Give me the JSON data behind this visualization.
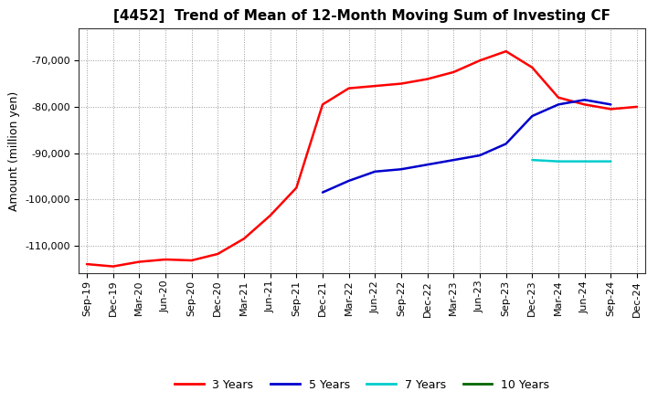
{
  "title": "[4452]  Trend of Mean of 12-Month Moving Sum of Investing CF",
  "ylabel": "Amount (million yen)",
  "background_color": "#ffffff",
  "plot_bg_color": "#ffffff",
  "grid_color": "#999999",
  "ylim": [
    -116000,
    -63000
  ],
  "yticks": [
    -110000,
    -100000,
    -90000,
    -80000,
    -70000
  ],
  "x_labels": [
    "Sep-19",
    "Dec-19",
    "Mar-20",
    "Jun-20",
    "Sep-20",
    "Dec-20",
    "Mar-21",
    "Jun-21",
    "Sep-21",
    "Dec-21",
    "Mar-22",
    "Jun-22",
    "Sep-22",
    "Dec-22",
    "Mar-23",
    "Jun-23",
    "Sep-23",
    "Dec-23",
    "Mar-24",
    "Jun-24",
    "Sep-24",
    "Dec-24"
  ],
  "series_3yr": {
    "label": "3 Years",
    "color": "#ff0000",
    "data_x": [
      0,
      1,
      2,
      3,
      4,
      5,
      6,
      7,
      8,
      9,
      10,
      11,
      12,
      13,
      14,
      15,
      16,
      17,
      18,
      19,
      20,
      21
    ],
    "data_y": [
      -114000,
      -114500,
      -113500,
      -113000,
      -113200,
      -111800,
      -108500,
      -103500,
      -97500,
      -79500,
      -76000,
      -75500,
      -75000,
      -74000,
      -72500,
      -70000,
      -68000,
      -71500,
      -78000,
      -79500,
      -80500,
      -80000
    ]
  },
  "series_5yr": {
    "label": "5 Years",
    "color": "#0000cc",
    "data_x": [
      9,
      10,
      11,
      12,
      13,
      14,
      15,
      16,
      17,
      18,
      19,
      20
    ],
    "data_y": [
      -98500,
      -96000,
      -94000,
      -93500,
      -92500,
      -91500,
      -90500,
      -88000,
      -82000,
      -79500,
      -78500,
      -79500
    ]
  },
  "series_7yr": {
    "label": "7 Years",
    "color": "#00cccc",
    "data_x": [
      17,
      18,
      19,
      20
    ],
    "data_y": [
      -91500,
      -91800,
      -91800,
      -91800
    ]
  },
  "series_10yr": {
    "label": "10 Years",
    "color": "#006600",
    "data_x": [],
    "data_y": []
  },
  "title_fontsize": 11,
  "axis_fontsize": 9,
  "tick_fontsize": 8,
  "legend_fontsize": 9
}
